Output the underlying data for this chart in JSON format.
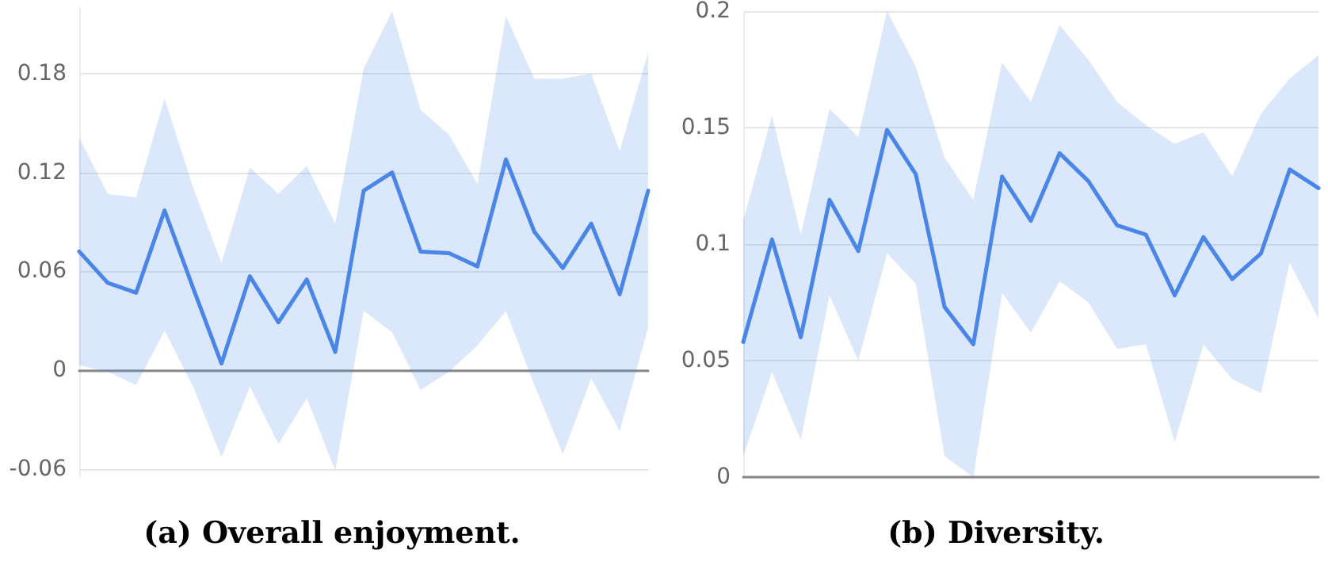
{
  "chart_data": [
    {
      "type": "line",
      "title": "(a) Overall enjoyment.",
      "categories": [
        null,
        null,
        null,
        null,
        null,
        null,
        null,
        null,
        null,
        null,
        null,
        null,
        null,
        null,
        null,
        null,
        null,
        null,
        null,
        null,
        null
      ],
      "series": [
        {
          "color": "#4a86e8",
          "values": [
            0.072,
            0.053,
            0.047,
            0.097,
            0.05,
            0.004,
            0.057,
            0.029,
            0.055,
            0.011,
            0.109,
            0.12,
            0.072,
            0.071,
            0.063,
            0.128,
            0.084,
            0.062,
            0.089,
            0.046,
            0.109
          ],
          "lower": [
            0.003,
            -0.001,
            -0.009,
            0.024,
            -0.01,
            -0.053,
            -0.01,
            -0.045,
            -0.017,
            -0.061,
            0.036,
            0.023,
            -0.012,
            -0.001,
            0.015,
            0.036,
            -0.009,
            -0.051,
            -0.005,
            -0.037,
            0.026
          ],
          "upper": [
            0.141,
            0.107,
            0.105,
            0.165,
            0.111,
            0.065,
            0.123,
            0.107,
            0.124,
            0.089,
            0.183,
            0.218,
            0.158,
            0.143,
            0.113,
            0.215,
            0.177,
            0.177,
            0.18,
            0.133,
            0.193
          ]
        }
      ],
      "ylim": [
        -0.065,
        0.22
      ],
      "yticks": [
        -0.06,
        0,
        0.06,
        0.12,
        0.18
      ],
      "grid": "y",
      "tick_labels": "y",
      "marker": "none",
      "line_style": "solid"
    },
    {
      "type": "line",
      "title": "(b) Diversity.",
      "categories": [
        null,
        null,
        null,
        null,
        null,
        null,
        null,
        null,
        null,
        null,
        null,
        null,
        null,
        null,
        null,
        null,
        null,
        null,
        null,
        null,
        null
      ],
      "series": [
        {
          "color": "#4a86e8",
          "values": [
            0.058,
            0.102,
            0.06,
            0.119,
            0.097,
            0.149,
            0.13,
            0.073,
            0.057,
            0.129,
            0.11,
            0.139,
            0.127,
            0.108,
            0.104,
            0.078,
            0.103,
            0.085,
            0.096,
            0.132,
            0.124
          ],
          "lower": [
            0.009,
            0.045,
            0.016,
            0.078,
            0.05,
            0.096,
            0.083,
            0.009,
            0.0,
            0.079,
            0.062,
            0.084,
            0.075,
            0.055,
            0.057,
            0.015,
            0.057,
            0.042,
            0.036,
            0.092,
            0.068
          ],
          "upper": [
            0.11,
            0.155,
            0.104,
            0.158,
            0.146,
            0.2,
            0.176,
            0.137,
            0.119,
            0.178,
            0.161,
            0.194,
            0.179,
            0.161,
            0.151,
            0.143,
            0.148,
            0.129,
            0.156,
            0.171,
            0.181
          ]
        }
      ],
      "ylim": [
        0,
        0.2
      ],
      "yticks": [
        0,
        0.05,
        0.1,
        0.15,
        0.2
      ],
      "grid": "y",
      "tick_labels": "y",
      "marker": "none",
      "line_style": "solid"
    }
  ]
}
